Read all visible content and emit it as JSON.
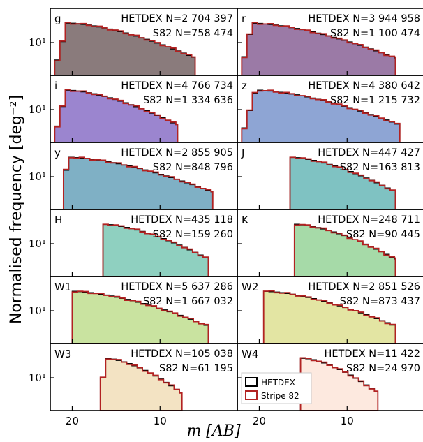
{
  "figure": {
    "ylabel": "Normalised frequency [deg⁻²]",
    "xlabel": "m [AB]",
    "legend": {
      "placement": "lower-right of W4 panel",
      "hetdex": "HETDEX",
      "stripe82": "Stripe 82"
    },
    "colors": {
      "hetdex_line": "#000000",
      "stripe82_line": "#b22222"
    }
  },
  "chart_data": {
    "type": "histogram",
    "x_axis": {
      "label": "m [AB]",
      "inverted": true,
      "range": [
        22.5,
        1.2
      ],
      "ticks": [
        20,
        10
      ]
    },
    "y_axis": {
      "label": "Normalised frequency [deg⁻²]",
      "scale": "log",
      "tick_label": "10¹"
    },
    "panels": [
      {
        "band": "g",
        "hetdex_n": "HETDEX N=2 704 397",
        "s82_n": "S82 N=758 474",
        "fill": "#8a7b7c",
        "bright": 6.0,
        "faint": 22.0,
        "peak_mag": 20.5
      },
      {
        "band": "r",
        "hetdex_n": "HETDEX N=3 944 958",
        "s82_n": "S82 N=1 100 474",
        "fill": "#9b7aa6",
        "bright": 4.5,
        "faint": 22.0,
        "peak_mag": 20.8
      },
      {
        "band": "i",
        "hetdex_n": "HETDEX N=4 766 734",
        "s82_n": "S82 N=1 334 636",
        "fill": "#9b85cf",
        "bright": 8.0,
        "faint": 22.0,
        "peak_mag": 20.6
      },
      {
        "band": "z",
        "hetdex_n": "HETDEX N=4 380 642",
        "s82_n": "S82 N=1 215 732",
        "fill": "#8ea5d4",
        "bright": 4.0,
        "faint": 22.0,
        "peak_mag": 20.4
      },
      {
        "band": "y",
        "hetdex_n": "HETDEX N=2 855 905",
        "s82_n": "S82 N=848 796",
        "fill": "#7fb0c5",
        "bright": 4.0,
        "faint": 21.0,
        "peak_mag": 20.5
      },
      {
        "band": "J",
        "hetdex_n": "HETDEX N=447 427",
        "s82_n": "S82 N=163 813",
        "fill": "#7fc2c2",
        "bright": 4.5,
        "faint": 16.5,
        "peak_mag": 16.5
      },
      {
        "band": "H",
        "hetdex_n": "HETDEX N=435 118",
        "s82_n": "S82 N=159 260",
        "fill": "#8fd0c0",
        "bright": 4.5,
        "faint": 16.5,
        "peak_mag": 16.5
      },
      {
        "band": "K",
        "hetdex_n": "HETDEX N=248 711",
        "s82_n": "S82 N=90 445",
        "fill": "#a6daa8",
        "bright": 4.5,
        "faint": 16.0,
        "peak_mag": 16.0
      },
      {
        "band": "W1",
        "hetdex_n": "HETDEX N=5 637 286",
        "s82_n": "S82 N=1 667 032",
        "fill": "#c9e3a0",
        "bright": 4.5,
        "faint": 20.0,
        "peak_mag": 20.0
      },
      {
        "band": "W2",
        "hetdex_n": "HETDEX N=2 851 526",
        "s82_n": "S82 N=873 437",
        "fill": "#e3e5a3",
        "bright": 4.5,
        "faint": 19.5,
        "peak_mag": 19.5
      },
      {
        "band": "W3",
        "hetdex_n": "HETDEX N=105 038",
        "s82_n": "S82 N=61 195",
        "fill": "#f3e3c3",
        "bright": 7.5,
        "faint": 16.8,
        "peak_mag": 16.2
      },
      {
        "band": "W4",
        "hetdex_n": "HETDEX N=11 422",
        "s82_n": "S82 N=24 970",
        "fill": "#fde9df",
        "bright": 6.5,
        "faint": 15.3,
        "peak_mag": 15.0
      }
    ]
  }
}
